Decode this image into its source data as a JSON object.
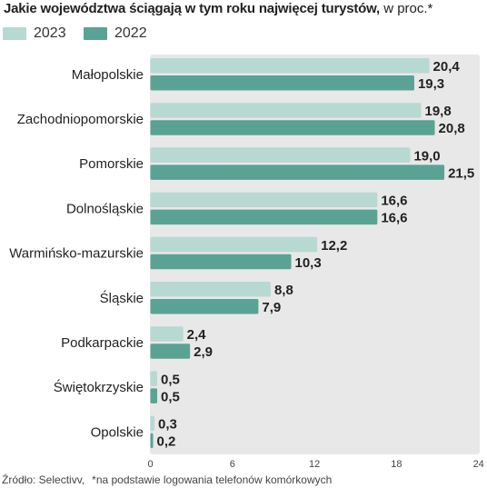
{
  "title": {
    "main": "Jakie województwa ściągają w tym roku najwięcej turystów,",
    "unit": " w proc.*"
  },
  "source": {
    "text": "Źródło: Selectivv,",
    "note": "*na podstawie logowania telefonów komórkowych"
  },
  "colors": {
    "series_2023": "#b7d9d2",
    "series_2022": "#5aa394",
    "plot_background": "#e8e8e8",
    "text": "#222222"
  },
  "chart_data": {
    "type": "bar",
    "orientation": "horizontal",
    "categories": [
      "Małopolskie",
      "Zachodniopomorskie",
      "Pomorskie",
      "Dolnośląskie",
      "Warmińsko-mazurskie",
      "Śląskie",
      "Podkarpackie",
      "Świętokrzyskie",
      "Opolskie"
    ],
    "series": [
      {
        "name": "2023",
        "values": [
          20.4,
          19.8,
          19.0,
          16.6,
          12.2,
          8.8,
          2.4,
          0.5,
          0.3
        ],
        "labels": [
          "20,4",
          "19,8",
          "19,0",
          "16,6",
          "12,2",
          "8,8",
          "2,4",
          "0,5",
          "0,3"
        ]
      },
      {
        "name": "2022",
        "values": [
          19.3,
          20.8,
          21.5,
          16.6,
          10.3,
          7.9,
          2.9,
          0.5,
          0.2
        ],
        "labels": [
          "19,3",
          "20,8",
          "21,5",
          "16,6",
          "10,3",
          "7,9",
          "2,9",
          "0,5",
          "0,2"
        ]
      }
    ],
    "xlim": [
      0,
      24
    ],
    "xticks": [
      "0",
      "6",
      "12",
      "18",
      "24"
    ],
    "grid": false,
    "legend_position": "top-left"
  }
}
